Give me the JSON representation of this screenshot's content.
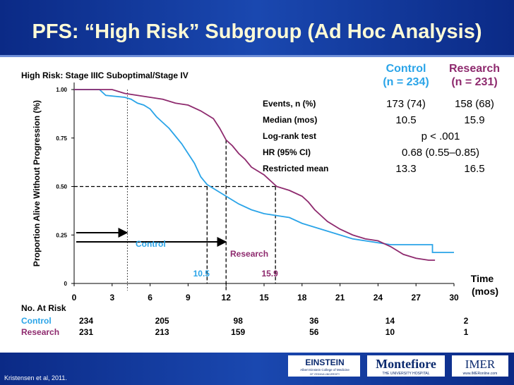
{
  "chart_data": {
    "type": "line",
    "title": "PFS: “High Risk” Subgroup (Ad Hoc Analysis)",
    "subtitle": "High Risk: Stage IIIC Suboptimal/Stage IV",
    "ylabel": "Proportion Alive Without Progression (%)",
    "xlabel": [
      "Time",
      "(mos)"
    ],
    "xlim": [
      0,
      30
    ],
    "xticks": [
      0,
      3,
      6,
      9,
      12,
      15,
      18,
      21,
      24,
      27,
      30
    ],
    "ylim": [
      0,
      1
    ],
    "yticks": [
      0,
      0.25,
      {
        "value": 0.5,
        "label": "0.50"
      },
      0.75,
      {
        "value": 1,
        "label": "1.00"
      }
    ],
    "series": [
      {
        "name": "Control",
        "color": "#2aa4e8",
        "x": [
          0,
          2,
          2.5,
          4,
          4.5,
          5,
          5.5,
          6,
          6.5,
          7,
          7.5,
          8,
          8.5,
          9,
          9.5,
          10,
          10.5,
          11,
          11.5,
          12,
          12.5,
          13,
          14,
          15,
          16,
          17,
          18,
          19,
          20,
          21,
          22,
          23,
          24,
          25,
          26,
          27,
          28.3,
          28.3,
          30
        ],
        "values": [
          1,
          1,
          0.97,
          0.96,
          0.95,
          0.93,
          0.92,
          0.9,
          0.86,
          0.83,
          0.8,
          0.76,
          0.72,
          0.67,
          0.62,
          0.55,
          0.51,
          0.49,
          0.47,
          0.45,
          0.43,
          0.41,
          0.38,
          0.36,
          0.35,
          0.34,
          0.31,
          0.29,
          0.27,
          0.25,
          0.23,
          0.22,
          0.21,
          0.2,
          0.2,
          0.2,
          0.2,
          0.16,
          0.16
        ]
      },
      {
        "name": "Research",
        "color": "#8e2a6e",
        "x": [
          0,
          3,
          4,
          5,
          6,
          7,
          8,
          9,
          10,
          10.5,
          11,
          11.5,
          12,
          12.5,
          13,
          13.5,
          14,
          14.5,
          15,
          15.5,
          16,
          17,
          18,
          18.5,
          19,
          19.5,
          20,
          21,
          22,
          23,
          24,
          25,
          26,
          27,
          28,
          28.5
        ],
        "values": [
          1,
          1,
          0.98,
          0.97,
          0.96,
          0.95,
          0.93,
          0.92,
          0.89,
          0.87,
          0.85,
          0.8,
          0.74,
          0.71,
          0.67,
          0.64,
          0.6,
          0.58,
          0.56,
          0.53,
          0.5,
          0.48,
          0.45,
          0.42,
          0.38,
          0.35,
          0.32,
          0.28,
          0.25,
          0.23,
          0.22,
          0.19,
          0.15,
          0.13,
          0.12,
          0.12
        ]
      }
    ],
    "medians": [
      10.5,
      15.9
    ],
    "median_level": 0.5,
    "reference_x": [
      4.2,
      12
    ]
  },
  "stats_table": {
    "columns": [
      "(n = 234)",
      "(n = 231)"
    ],
    "rows": [
      {
        "label": "Events, n (%)",
        "values": [
          "173 (74)",
          "158 (68)"
        ]
      },
      {
        "label": "Median (mos)",
        "values": [
          10.5,
          15.9
        ]
      },
      {
        "label": "Log-rank test",
        "span": "p < .001"
      },
      {
        "label": "HR (95% CI)",
        "span": "0.68 (0.55–0.85)"
      },
      {
        "label": "Restricted mean",
        "values": [
          13.3,
          16.5
        ]
      }
    ]
  },
  "at_risk": {
    "title": "No. At Risk",
    "times": [
      0,
      6,
      12,
      18,
      24,
      30
    ],
    "rows": [
      [
        234,
        205,
        98,
        36,
        14,
        2
      ],
      [
        231,
        213,
        159,
        56,
        10,
        1
      ]
    ]
  },
  "footer": {
    "citation": "Kristensen et al, 2011.",
    "logos": [
      "EINSTEIN",
      "Albert Einstein College of Medicine",
      "OF YESHIVA UNIVERSITY",
      "Montefiore",
      "THE UNIVERSITY HOSPITAL",
      "IMER",
      "www.IMERonline.com"
    ]
  }
}
